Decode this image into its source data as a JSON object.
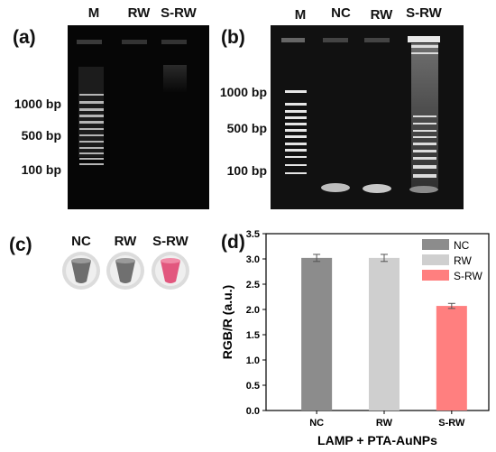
{
  "panels": {
    "a": {
      "label": "(a)",
      "lanes": [
        "M",
        "RW",
        "S-RW"
      ],
      "markers": [
        "1000 bp",
        "500 bp",
        "100 bp"
      ]
    },
    "b": {
      "label": "(b)",
      "lanes": [
        "M",
        "NC",
        "RW",
        "S-RW"
      ],
      "markers": [
        "1000 bp",
        "500 bp",
        "100 bp"
      ]
    },
    "c": {
      "label": "(c)",
      "tubes": [
        {
          "label": "NC",
          "color": "#6e6e6e"
        },
        {
          "label": "RW",
          "color": "#707070"
        },
        {
          "label": "S-RW",
          "color": "#e2577e"
        }
      ]
    },
    "d": {
      "label": "(d)"
    }
  },
  "chart_data": {
    "type": "bar",
    "categories": [
      "NC",
      "RW",
      "S-RW"
    ],
    "values": [
      3.02,
      3.02,
      2.07
    ],
    "errors": [
      0.07,
      0.07,
      0.05
    ],
    "colors": [
      "#8c8c8c",
      "#cfcfcf",
      "#ff7f7f"
    ],
    "legend": [
      "NC",
      "RW",
      "S-RW"
    ],
    "legend_position": "top-right",
    "xlabel": "LAMP + PTA-AuNPs",
    "ylabel": "RGB/R (a.u.)",
    "ylim": [
      0.0,
      3.5
    ],
    "yticks": [
      "0.0",
      "0.5",
      "1.0",
      "1.5",
      "2.0",
      "2.5",
      "3.0",
      "3.5"
    ]
  }
}
